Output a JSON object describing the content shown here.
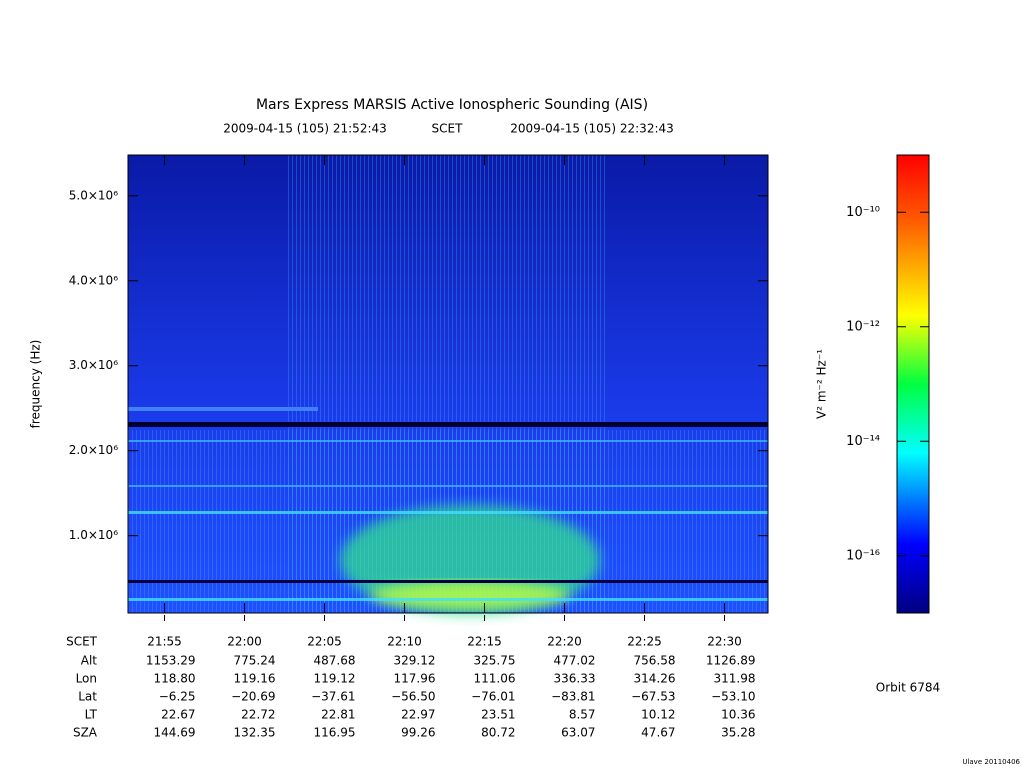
{
  "chart_data": {
    "type": "spectrogram",
    "title": "Mars Express MARSIS Active Ionospheric Sounding (AIS)",
    "xlim": [
      "2009-04-15 (105) 21:52:43",
      "2009-04-15 (105) 22:32:43"
    ],
    "time_label": "SCET",
    "xticks": [
      "21:55",
      "22:00",
      "22:05",
      "22:10",
      "22:15",
      "22:20",
      "22:25",
      "22:30"
    ],
    "ylabel": "frequency (Hz)",
    "ylim": [
      90000,
      5480000
    ],
    "yticks": [
      {
        "value": 1000000,
        "label": "1.0×10⁶"
      },
      {
        "value": 2000000,
        "label": "2.0×10⁶"
      },
      {
        "value": 3000000,
        "label": "3.0×10⁶"
      },
      {
        "value": 4000000,
        "label": "4.0×10⁶"
      },
      {
        "value": 5000000,
        "label": "5.0×10⁶"
      }
    ],
    "colorbar": {
      "label": "V² m⁻² Hz⁻¹",
      "scale": "log",
      "lim": [
        1e-17,
        1e-09
      ],
      "ticks": [
        {
          "value": 1e-16,
          "label": "10⁻¹⁶"
        },
        {
          "value": 1e-14,
          "label": "10⁻¹⁴"
        },
        {
          "value": 1e-12,
          "label": "10⁻¹²"
        },
        {
          "value": 1e-10,
          "label": "10⁻¹⁰"
        }
      ]
    },
    "ephemeris": [
      {
        "label": "Alt",
        "values": [
          1153.29,
          775.24,
          487.68,
          329.12,
          325.75,
          477.02,
          756.58,
          1126.89
        ]
      },
      {
        "label": "Lon",
        "values": [
          118.8,
          119.16,
          119.12,
          117.96,
          111.06,
          336.33,
          314.26,
          311.98
        ],
        "value_labels": [
          "118.80",
          "119.16",
          "119.12",
          "117.96",
          "111.06",
          "336.33",
          "314.26",
          "311.98"
        ]
      },
      {
        "label": "Lat",
        "values": [
          -6.25,
          -20.69,
          -37.61,
          -56.5,
          -76.01,
          -83.81,
          -67.53,
          -53.1
        ],
        "value_labels": [
          "−6.25",
          "−20.69",
          "−37.61",
          "−56.50",
          "−76.01",
          "−83.81",
          "−67.53",
          "−53.10"
        ]
      },
      {
        "label": "LT",
        "values": [
          22.67,
          22.72,
          22.81,
          22.97,
          23.51,
          8.57,
          10.12,
          10.36
        ]
      },
      {
        "label": "SZA",
        "values": [
          144.69,
          132.35,
          116.95,
          99.26,
          80.72,
          63.07,
          47.67,
          35.28
        ]
      }
    ],
    "orbit": "Orbit 6784",
    "footer": "Ulave 20110406"
  }
}
